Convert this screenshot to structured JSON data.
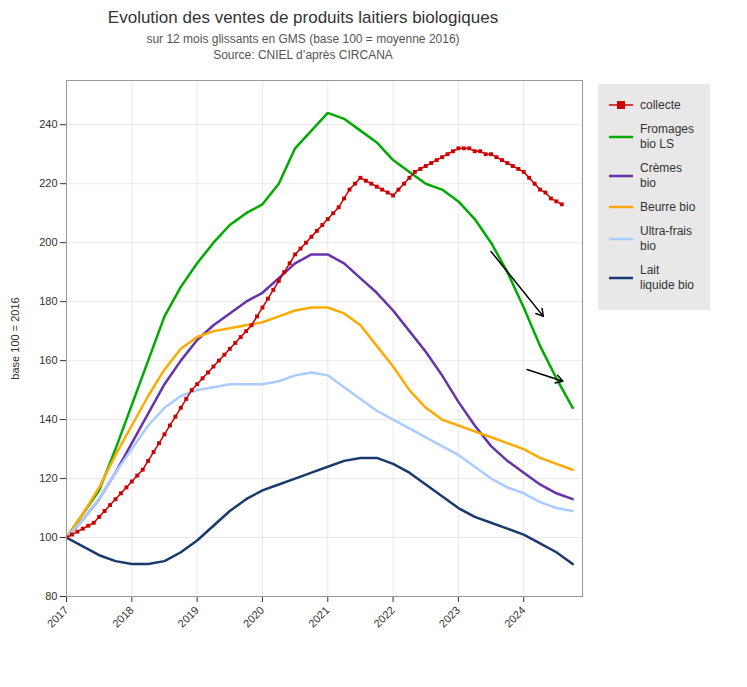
{
  "chart_data": {
    "type": "line",
    "title": "Evolution des ventes de produits laitiers biologiques",
    "subtitle": [
      "sur 12 mois glissants en GMS (base 100 = moyenne 2016)",
      "Source: CNIEL d’après CIRCANA"
    ],
    "ylabel": "base 100 = 2016",
    "xlim": [
      2017,
      2024.9
    ],
    "xticks": [
      2017,
      2018,
      2019,
      2020,
      2021,
      2022,
      2023,
      2024
    ],
    "ylim": [
      80,
      255
    ],
    "yticks": [
      80,
      100,
      120,
      140,
      160,
      180,
      200,
      220,
      240
    ],
    "grid": true,
    "legend": "right",
    "series": [
      {
        "name": "collecte",
        "color": "#cc0000",
        "marker": "square",
        "x": [
          2017.0,
          2017.083,
          2017.167,
          2017.25,
          2017.333,
          2017.417,
          2017.5,
          2017.583,
          2017.667,
          2017.75,
          2017.833,
          2017.917,
          2018.0,
          2018.083,
          2018.167,
          2018.25,
          2018.333,
          2018.417,
          2018.5,
          2018.583,
          2018.667,
          2018.75,
          2018.833,
          2018.917,
          2019.0,
          2019.083,
          2019.167,
          2019.25,
          2019.333,
          2019.417,
          2019.5,
          2019.583,
          2019.667,
          2019.75,
          2019.833,
          2019.917,
          2020.0,
          2020.083,
          2020.167,
          2020.25,
          2020.333,
          2020.417,
          2020.5,
          2020.583,
          2020.667,
          2020.75,
          2020.833,
          2020.917,
          2021.0,
          2021.083,
          2021.167,
          2021.25,
          2021.333,
          2021.417,
          2021.5,
          2021.583,
          2021.667,
          2021.75,
          2021.833,
          2021.917,
          2022.0,
          2022.083,
          2022.167,
          2022.25,
          2022.333,
          2022.417,
          2022.5,
          2022.583,
          2022.667,
          2022.75,
          2022.833,
          2022.917,
          2023.0,
          2023.083,
          2023.167,
          2023.25,
          2023.333,
          2023.417,
          2023.5,
          2023.583,
          2023.667,
          2023.75,
          2023.833,
          2023.917,
          2024.0,
          2024.083,
          2024.167,
          2024.25,
          2024.333,
          2024.417,
          2024.5,
          2024.583
        ],
        "values": [
          100,
          101,
          102,
          103,
          104,
          105,
          107,
          109,
          111,
          113,
          115,
          117,
          119,
          121,
          123,
          126,
          129,
          132,
          135,
          138,
          141,
          144,
          147,
          150,
          152,
          154,
          156,
          158,
          160,
          162,
          164,
          166,
          168,
          170,
          172,
          175,
          178,
          181,
          184,
          187,
          190,
          193,
          196,
          198,
          200,
          202,
          204,
          206,
          208,
          210,
          212,
          215,
          218,
          220,
          222,
          221,
          220,
          219,
          218,
          217,
          216,
          218,
          220,
          222,
          224,
          225,
          226,
          227,
          228,
          229,
          230,
          231,
          232,
          232,
          232,
          231,
          231,
          230,
          230,
          229,
          228,
          227,
          226,
          225,
          224,
          222,
          220,
          218,
          217,
          215,
          214,
          213
        ]
      },
      {
        "name": "Fromages\nbio LS",
        "color": "#00aa00",
        "x": [
          2017.0,
          2017.25,
          2017.5,
          2017.75,
          2018.0,
          2018.25,
          2018.5,
          2018.75,
          2019.0,
          2019.25,
          2019.5,
          2019.75,
          2020.0,
          2020.25,
          2020.5,
          2020.75,
          2021.0,
          2021.25,
          2021.5,
          2021.75,
          2022.0,
          2022.25,
          2022.5,
          2022.75,
          2023.0,
          2023.25,
          2023.5,
          2023.75,
          2024.0,
          2024.25,
          2024.5,
          2024.75
        ],
        "values": [
          100,
          108,
          116,
          130,
          145,
          160,
          175,
          185,
          193,
          200,
          206,
          210,
          213,
          220,
          232,
          238,
          244,
          242,
          238,
          234,
          228,
          224,
          220,
          218,
          214,
          208,
          200,
          190,
          178,
          165,
          154,
          144
        ]
      },
      {
        "name": "Crèmes\nbio",
        "color": "#6633aa",
        "x": [
          2017.0,
          2017.25,
          2017.5,
          2017.75,
          2018.0,
          2018.25,
          2018.5,
          2018.75,
          2019.0,
          2019.25,
          2019.5,
          2019.75,
          2020.0,
          2020.25,
          2020.5,
          2020.75,
          2021.0,
          2021.25,
          2021.5,
          2021.75,
          2022.0,
          2022.25,
          2022.5,
          2022.75,
          2023.0,
          2023.25,
          2023.5,
          2023.75,
          2024.0,
          2024.25,
          2024.5,
          2024.75
        ],
        "values": [
          100,
          106,
          113,
          122,
          132,
          142,
          152,
          160,
          167,
          172,
          176,
          180,
          183,
          188,
          193,
          196,
          196,
          193,
          188,
          183,
          177,
          170,
          163,
          155,
          146,
          138,
          131,
          126,
          122,
          118,
          115,
          113
        ]
      },
      {
        "name": "Beurre bio",
        "color": "#ffaa00",
        "x": [
          2017.0,
          2017.25,
          2017.5,
          2017.75,
          2018.0,
          2018.25,
          2018.5,
          2018.75,
          2019.0,
          2019.25,
          2019.5,
          2019.75,
          2020.0,
          2020.25,
          2020.5,
          2020.75,
          2021.0,
          2021.25,
          2021.5,
          2021.75,
          2022.0,
          2022.25,
          2022.5,
          2022.75,
          2023.0,
          2023.25,
          2023.5,
          2023.75,
          2024.0,
          2024.25,
          2024.5,
          2024.75
        ],
        "values": [
          100,
          108,
          117,
          128,
          138,
          148,
          157,
          164,
          168,
          170,
          171,
          172,
          173,
          175,
          177,
          178,
          178,
          176,
          172,
          165,
          158,
          150,
          144,
          140,
          138,
          136,
          134,
          132,
          130,
          127,
          125,
          123
        ]
      },
      {
        "name": "Ultra-frais\nbio",
        "color": "#aaccff",
        "x": [
          2017.0,
          2017.25,
          2017.5,
          2017.75,
          2018.0,
          2018.25,
          2018.5,
          2018.75,
          2019.0,
          2019.25,
          2019.5,
          2019.75,
          2020.0,
          2020.25,
          2020.5,
          2020.75,
          2021.0,
          2021.25,
          2021.5,
          2021.75,
          2022.0,
          2022.25,
          2022.5,
          2022.75,
          2023.0,
          2023.25,
          2023.5,
          2023.75,
          2024.0,
          2024.25,
          2024.5,
          2024.75
        ],
        "values": [
          100,
          106,
          113,
          122,
          130,
          138,
          144,
          148,
          150,
          151,
          152,
          152,
          152,
          153,
          155,
          156,
          155,
          151,
          147,
          143,
          140,
          137,
          134,
          131,
          128,
          124,
          120,
          117,
          115,
          112,
          110,
          109
        ]
      },
      {
        "name": "Lait\nliquide bio",
        "color": "#1a3a6e",
        "x": [
          2017.0,
          2017.25,
          2017.5,
          2017.75,
          2018.0,
          2018.25,
          2018.5,
          2018.75,
          2019.0,
          2019.25,
          2019.5,
          2019.75,
          2020.0,
          2020.25,
          2020.5,
          2020.75,
          2021.0,
          2021.25,
          2021.5,
          2021.75,
          2022.0,
          2022.25,
          2022.5,
          2022.75,
          2023.0,
          2023.25,
          2023.5,
          2023.75,
          2024.0,
          2024.25,
          2024.5,
          2024.75
        ],
        "values": [
          100,
          97,
          94,
          92,
          91,
          91,
          92,
          95,
          99,
          104,
          109,
          113,
          116,
          118,
          120,
          122,
          124,
          126,
          127,
          127,
          125,
          122,
          118,
          114,
          110,
          107,
          105,
          103,
          101,
          98,
          95,
          91
        ]
      }
    ],
    "annotations": [
      {
        "x_start": 2023.5,
        "y_start": 197,
        "x_end": 2024.3,
        "y_end": 175
      },
      {
        "x_start": 2024.05,
        "y_start": 157,
        "x_end": 2024.6,
        "y_end": 153
      }
    ]
  }
}
